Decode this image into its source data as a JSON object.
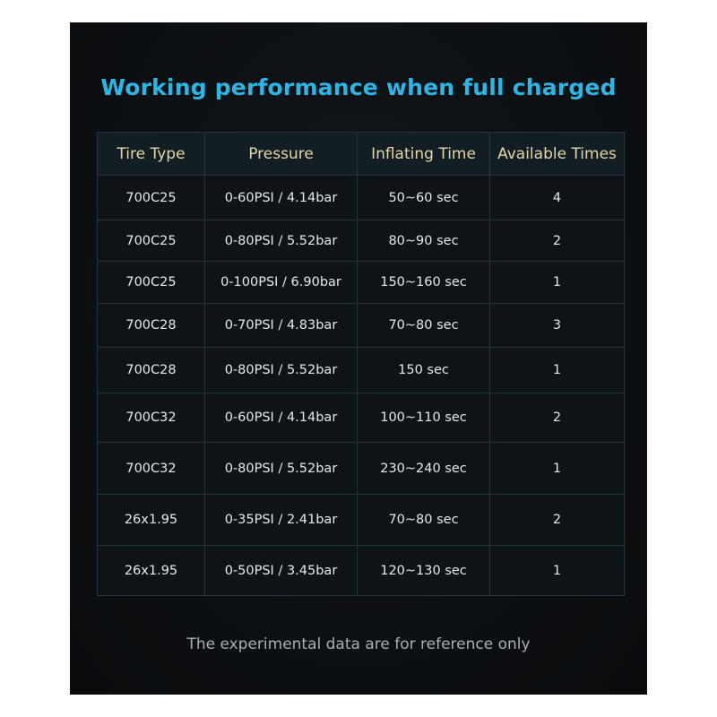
{
  "title": "Working performance when full charged",
  "table": {
    "headers": [
      "Tire Type",
      "Pressure",
      "Inflating Time",
      "Available Times"
    ],
    "rows": [
      [
        "700C25",
        "0-60PSI / 4.14bar",
        "50~60 sec",
        "4"
      ],
      [
        "700C25",
        "0-80PSI / 5.52bar",
        "80~90 sec",
        "2"
      ],
      [
        "700C25",
        "0-100PSI / 6.90bar",
        "150~160 sec",
        "1"
      ],
      [
        "700C28",
        "0-70PSI / 4.83bar",
        "70~80 sec",
        "3"
      ],
      [
        "700C28",
        "0-80PSI / 5.52bar",
        "150 sec",
        "1"
      ],
      [
        "700C32",
        "0-60PSI / 4.14bar",
        "100~110 sec",
        "2"
      ],
      [
        "700C32",
        "0-80PSI / 5.52bar",
        "230~240 sec",
        "1"
      ],
      [
        "26x1.95",
        "0-35PSI / 2.41bar",
        "70~80 sec",
        "2"
      ],
      [
        "26x1.95",
        "0-50PSI / 3.45bar",
        "120~130 sec",
        "1"
      ]
    ]
  },
  "note": "The experimental data are for reference only",
  "colors": {
    "title": "#2bb6e6",
    "header_text": "#e3d7a8",
    "background": "#0d1013"
  }
}
